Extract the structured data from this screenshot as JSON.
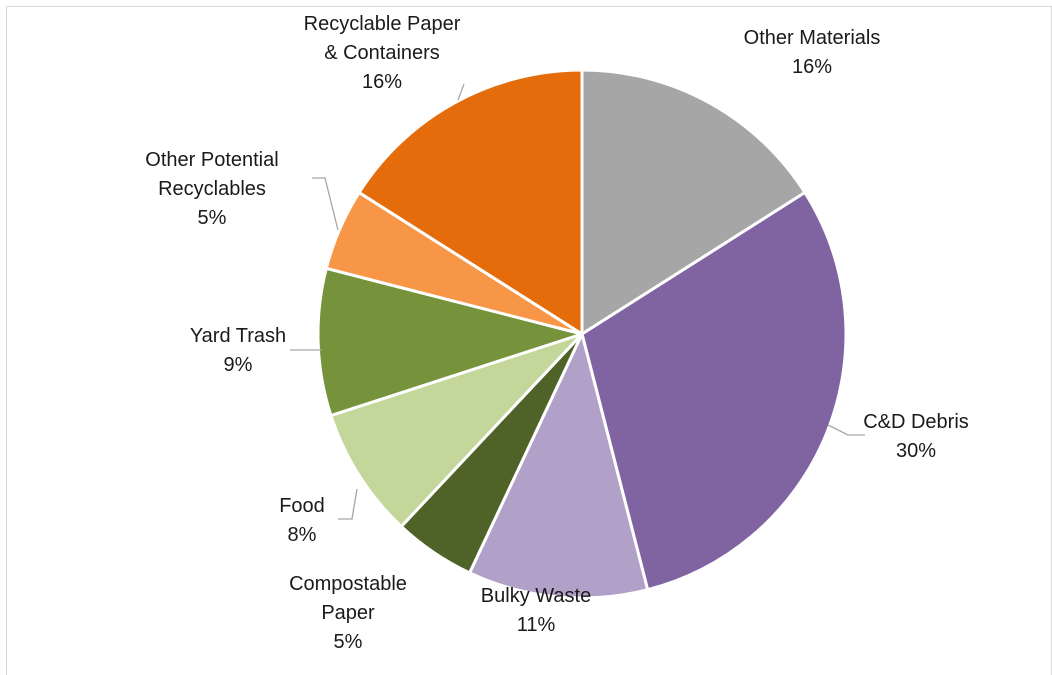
{
  "chart_data": {
    "type": "pie",
    "title": "",
    "slices": [
      {
        "label": "Other Materials",
        "value": 16,
        "value_label": "16%",
        "color": "#a6a6a6"
      },
      {
        "label": "C&D Debris",
        "value": 30,
        "value_label": "30%",
        "color": "#8064a2"
      },
      {
        "label": "Bulky Waste",
        "value": 11,
        "value_label": "11%",
        "color": "#b1a0c7"
      },
      {
        "label": "Compostable Paper",
        "value": 5,
        "value_label": "5%",
        "color": "#4f6228"
      },
      {
        "label": "Food",
        "value": 8,
        "value_label": "8%",
        "color": "#c4d79b"
      },
      {
        "label": "Yard Trash",
        "value": 9,
        "value_label": "9%",
        "color": "#76933c"
      },
      {
        "label": "Other Potential Recyclables",
        "value": 5,
        "value_label": "5%",
        "color": "#f79646"
      },
      {
        "label": "Recyclable Paper & Containers",
        "value": 16,
        "value_label": "16%",
        "color": "#e46c0a"
      }
    ],
    "start_angle_deg": 0,
    "direction": "clockwise",
    "legend": "none",
    "slice_border_color": "#ffffff",
    "leader_line_color": "#a6a6a6"
  }
}
